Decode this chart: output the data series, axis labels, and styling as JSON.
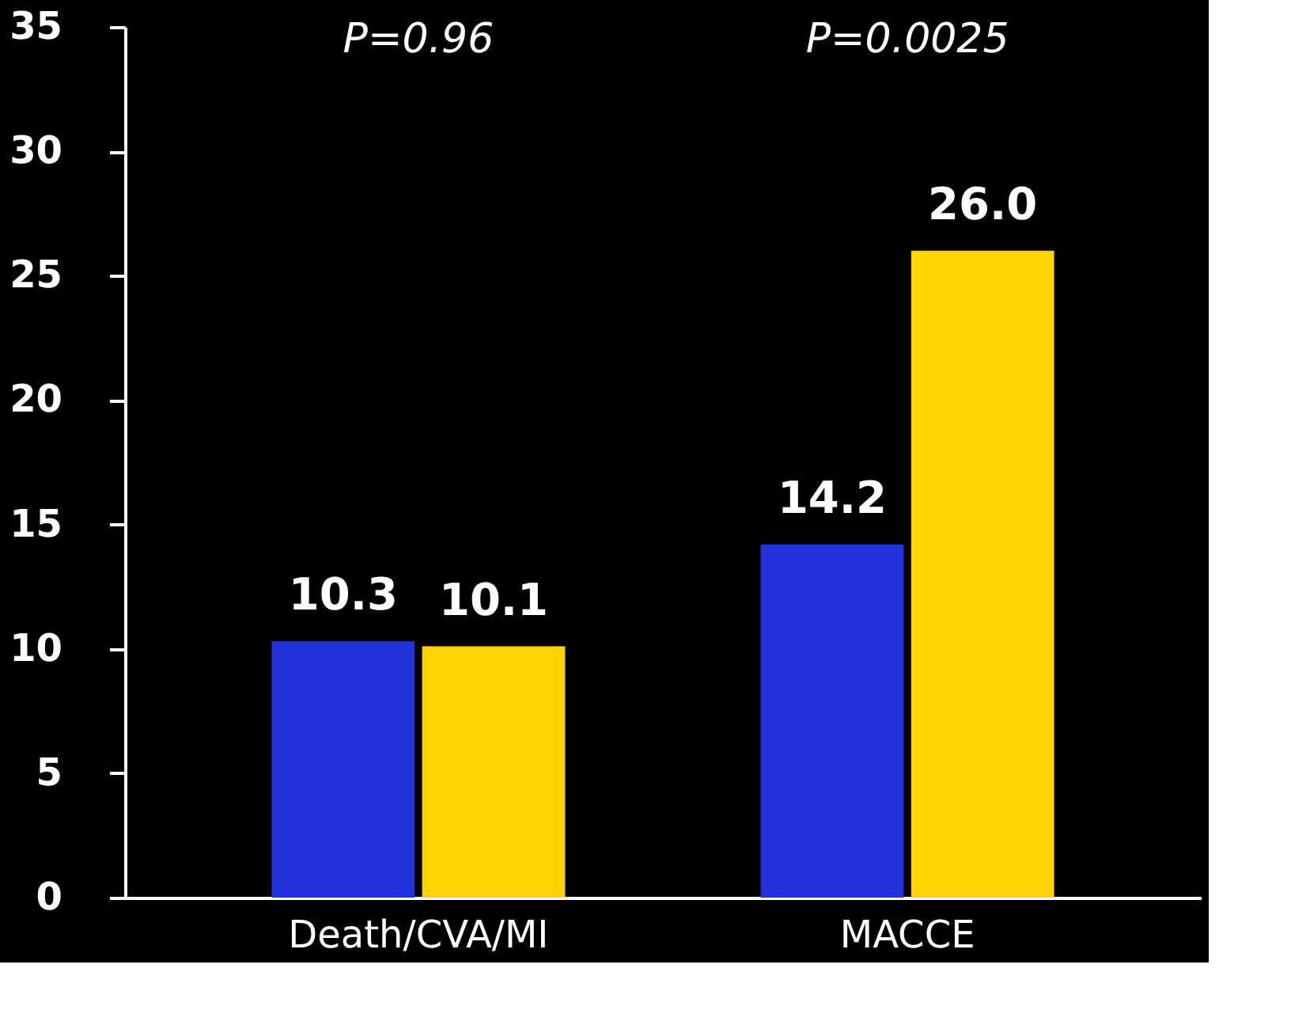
{
  "chart_data": {
    "type": "bar",
    "categories": [
      "Death/CVA/MI",
      "MACCE"
    ],
    "series": [
      {
        "color": "#2233dd",
        "values": [
          10.3,
          14.2
        ],
        "value_labels": [
          "10.3",
          "14.2"
        ]
      },
      {
        "color": "#ffd400",
        "values": [
          10.1,
          26.0
        ],
        "value_labels": [
          "10.1",
          "26.0"
        ]
      }
    ],
    "ylim": [
      0,
      35
    ],
    "yticks": [
      0,
      5,
      10,
      15,
      20,
      25,
      30,
      35
    ],
    "grid": false,
    "annotations": [
      "P=0.96",
      "P=0.0025"
    ]
  }
}
